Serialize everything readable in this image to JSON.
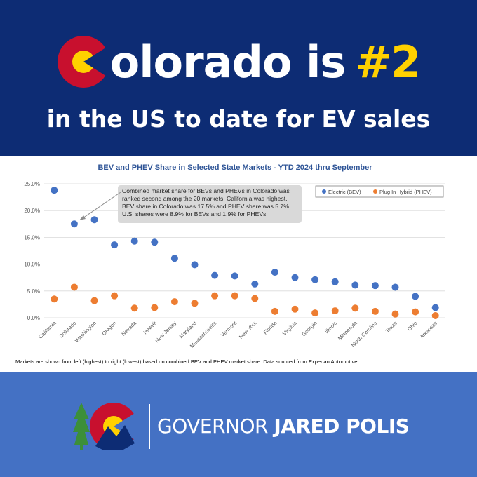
{
  "header": {
    "title_main": "olorado is",
    "title_accent": "#2",
    "subtitle": "in the US to date for EV sales"
  },
  "chart_data": {
    "type": "scatter",
    "title": "BEV and PHEV Share in Selected State Markets - YTD 2024 thru September",
    "categories": [
      "California",
      "Colorado",
      "Washington",
      "Oregon",
      "Nevada",
      "Hawaii",
      "New Jersey",
      "Maryland",
      "Massachusetts",
      "Vermont",
      "New York",
      "Florida",
      "Virginia",
      "Georgia",
      "Illinois",
      "Minnesota",
      "North Carolina",
      "Texas",
      "Ohio",
      "Arkansas"
    ],
    "series": [
      {
        "name": "Electric (BEV)",
        "color": "#4472c4",
        "values": [
          23.8,
          17.5,
          18.3,
          13.6,
          14.3,
          14.1,
          11.1,
          9.9,
          7.9,
          7.8,
          6.3,
          8.5,
          7.5,
          7.1,
          6.7,
          6.1,
          6.0,
          5.7,
          4.0,
          1.9
        ]
      },
      {
        "name": "Plug In Hybrid (PHEV)",
        "color": "#ed7d31",
        "values": [
          3.5,
          5.7,
          3.2,
          4.1,
          1.8,
          1.9,
          3.0,
          2.7,
          4.1,
          4.1,
          3.6,
          1.2,
          1.6,
          0.9,
          1.3,
          1.8,
          1.2,
          0.7,
          1.1,
          0.4
        ]
      }
    ],
    "y_ticks": [
      "0.0%",
      "5.0%",
      "10.0%",
      "15.0%",
      "20.0%",
      "25.0%"
    ],
    "ylim": [
      0,
      25
    ],
    "grid": true,
    "legend_position": "top-right",
    "annotation": [
      "Combined market share for BEVs and PHEVs in Colorado was",
      "ranked second among the 20 markets. California was highest.",
      "BEV share in Colorado was 17.5% and PHEV share was 5.7%.",
      "U.S. shares were 8.9% for BEVs and 1.9% for PHEVs."
    ],
    "footnote": "Markets are shown from left (highest) to right (lowest) based on combined BEV and PHEV market share. Data sourced from Experian Automotive."
  },
  "footer": {
    "name_prefix": "GOVERNOR",
    "name_bold": "JARED POLIS"
  },
  "colors": {
    "navy": "#0d2c74",
    "gold": "#ffd100",
    "red": "#c8102e",
    "footer_blue": "#4471c4"
  }
}
